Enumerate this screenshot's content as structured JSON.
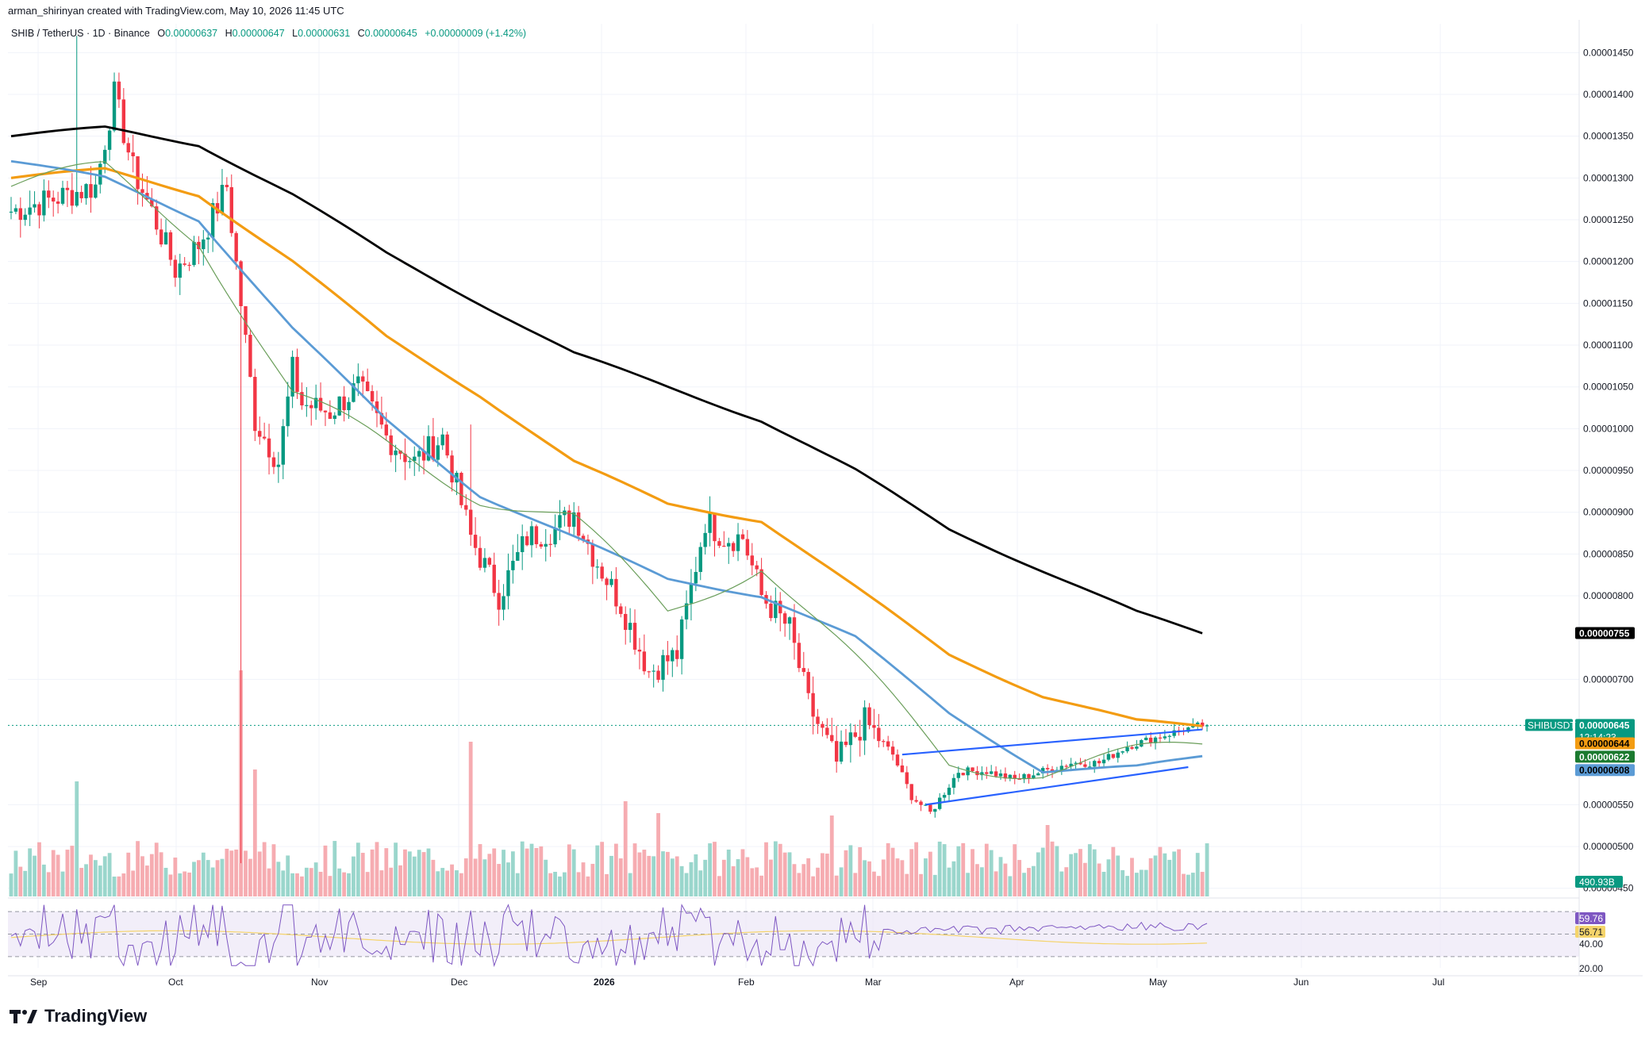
{
  "header": {
    "caption": "arman_shirinyan created with TradingView.com, May 10, 2026 11:45 UTC"
  },
  "legend": {
    "symbol": "SHIB / TetherUS · 1D · Binance",
    "o_label": "O",
    "o_value": "0.00000637",
    "h_label": "H",
    "h_value": "0.00000647",
    "l_label": "L",
    "l_value": "0.00000631",
    "c_label": "C",
    "c_value": "0.00000645",
    "change": "+0.00000009 (+1.42%)"
  },
  "brand": {
    "name": "TradingView"
  },
  "colors": {
    "up": "#089981",
    "down": "#f23645",
    "vol_up": "#8fd1c7",
    "vol_down": "#f5a3a9",
    "ma200": "#000000",
    "ma100": "#f39c12",
    "ma50": "#5b9bd5",
    "ma20": "#6a9e5a",
    "rsi": "#7e57c2",
    "rsi_ma": "#f5d46b",
    "trend": "#2962ff"
  },
  "chart_data": {
    "type": "candlestick",
    "x_axis_labels": [
      "Sep",
      "Oct",
      "Nov",
      "Dec",
      "2026",
      "Feb",
      "Mar",
      "Apr",
      "May",
      "Jun",
      "Jul"
    ],
    "price_axis_labels": [
      "0.00001450",
      "0.00001400",
      "0.00001350",
      "0.00001300",
      "0.00001250",
      "0.00001200",
      "0.00001150",
      "0.00001100",
      "0.00001050",
      "0.00001000",
      "0.00000950",
      "0.00000900",
      "0.00000850",
      "0.00000800",
      "0.00000700",
      "0.00000550",
      "0.00000500",
      "0.00000450"
    ],
    "price_ticks": [
      14.5,
      14.0,
      13.5,
      13.0,
      12.5,
      12.0,
      11.5,
      11.0,
      10.5,
      10.0,
      9.5,
      9.0,
      8.5,
      8.0,
      7.0,
      5.5,
      5.0,
      4.5
    ],
    "ylim": [
      4.45,
      14.75
    ],
    "price_tags": [
      {
        "label": "0.00000755",
        "value": 7.55,
        "bg": "#000000",
        "fg": "#ffffff"
      },
      {
        "label": "0.00000645",
        "value": 6.45,
        "bg": "#089981",
        "fg": "#ffffff",
        "symbol": "SHIBUSDT",
        "countdown": "12:14:23"
      },
      {
        "label": "0.00000644",
        "value": 6.23,
        "bg": "#f39c12",
        "fg": "#000000"
      },
      {
        "label": "0.00000622",
        "value": 6.07,
        "bg": "#1b7a2f",
        "fg": "#ffffff"
      },
      {
        "label": "0.00000608",
        "value": 5.91,
        "bg": "#5b9bd5",
        "fg": "#000000"
      }
    ],
    "volume_tag": "490.93B",
    "rsi": {
      "value_label": "59.76",
      "ma_label": "56.71",
      "levels": [
        "40.00",
        "20.00"
      ],
      "ylim": [
        20,
        80
      ]
    },
    "anchors": {
      "x": [
        0,
        18,
        22,
        26,
        30,
        35,
        40,
        46,
        52,
        57,
        60,
        62,
        68,
        74,
        80,
        86,
        92,
        98,
        104,
        110,
        116,
        120,
        124,
        130,
        136,
        142,
        148,
        152,
        156,
        160,
        166,
        170,
        176,
        182,
        188,
        192,
        196,
        202,
        208,
        214,
        220,
        226,
        232,
        238,
        244,
        250,
        254
      ],
      "close": [
        12.6,
        12.9,
        14.0,
        13.1,
        12.6,
        11.9,
        12.2,
        12.9,
        10.1,
        9.6,
        10.7,
        10.3,
        10.2,
        10.5,
        9.9,
        9.6,
        9.9,
        8.7,
        8.0,
        8.7,
        8.8,
        9.0,
        8.5,
        7.9,
        7.1,
        7.3,
        8.9,
        8.7,
        8.7,
        8.0,
        7.6,
        6.7,
        6.0,
        6.5,
        6.1,
        5.6,
        5.4,
        5.9,
        5.9,
        5.8,
        5.9,
        6.0,
        6.0,
        6.2,
        6.3,
        6.4,
        6.45
      ]
    },
    "moving_averages": {
      "ma200": {
        "x": [
          0,
          20,
          40,
          60,
          80,
          100,
          120,
          140,
          160,
          180,
          200,
          220,
          240,
          254
        ],
        "y": [
          13.5,
          13.6,
          13.4,
          12.8,
          12.1,
          11.5,
          10.9,
          10.5,
          10.1,
          9.5,
          8.8,
          8.3,
          7.8,
          7.55
        ]
      },
      "ma100": {
        "x": [
          0,
          20,
          40,
          60,
          80,
          100,
          120,
          140,
          160,
          180,
          200,
          220,
          240,
          254
        ],
        "y": [
          13.0,
          13.1,
          12.8,
          12.0,
          11.1,
          10.4,
          9.6,
          9.1,
          8.9,
          8.1,
          7.3,
          6.8,
          6.5,
          6.44
        ]
      },
      "ma50": {
        "x": [
          0,
          20,
          40,
          60,
          80,
          100,
          120,
          140,
          160,
          180,
          200,
          220,
          240,
          254
        ],
        "y": [
          13.2,
          13.0,
          12.5,
          11.2,
          10.1,
          9.2,
          8.7,
          8.2,
          8.0,
          7.5,
          6.6,
          5.9,
          5.95,
          6.08
        ]
      },
      "ma20": {
        "x": [
          0,
          20,
          40,
          60,
          80,
          100,
          120,
          140,
          160,
          180,
          200,
          220,
          240,
          254
        ],
        "y": [
          12.9,
          13.1,
          12.3,
          10.4,
          9.8,
          9.2,
          8.9,
          7.8,
          8.4,
          7.2,
          6.0,
          5.9,
          6.1,
          6.22
        ]
      }
    },
    "trendlines": [
      {
        "x1": 190,
        "y1": 6.1,
        "x2": 254,
        "y2": 6.4
      },
      {
        "x1": 195,
        "y1": 5.5,
        "x2": 251,
        "y2": 5.95
      }
    ]
  }
}
